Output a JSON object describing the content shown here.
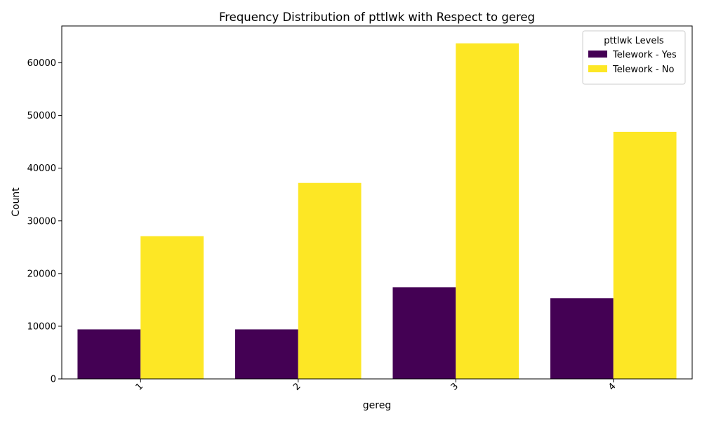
{
  "chart_data": {
    "type": "bar",
    "title": "Frequency Distribution of pttlwk with Respect to gereg",
    "xlabel": "gereg",
    "ylabel": "Count",
    "categories": [
      "1",
      "2",
      "3",
      "4"
    ],
    "series": [
      {
        "name": "Telework - Yes",
        "color": "#440154",
        "values": [
          9400,
          9400,
          17400,
          15300
        ]
      },
      {
        "name": "Telework - No",
        "color": "#fde725",
        "values": [
          27100,
          37200,
          63700,
          46900
        ]
      }
    ],
    "ylim": [
      0,
      67000
    ],
    "yticks": [
      0,
      10000,
      20000,
      30000,
      40000,
      50000,
      60000
    ],
    "legend": {
      "title": "pttlwk Levels",
      "position": "top-right"
    },
    "grid": false
  }
}
